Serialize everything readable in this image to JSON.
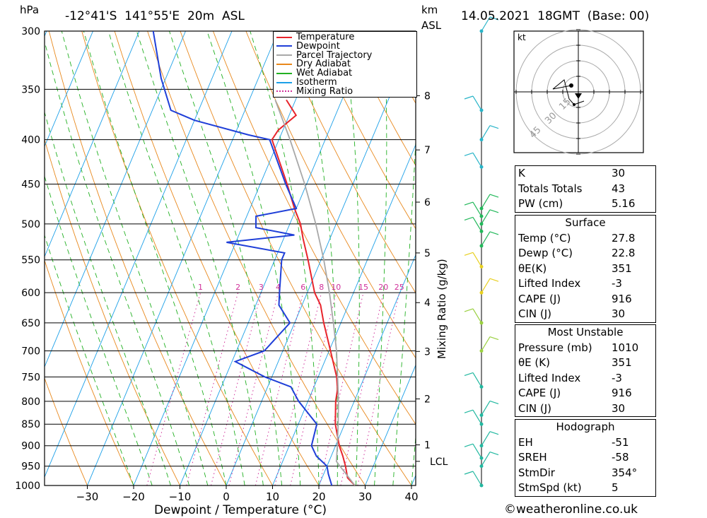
{
  "header": {
    "pressure_unit": "hPa",
    "location": "-12°41'S  141°55'E  20m  ASL",
    "km_unit": "km",
    "asl": "ASL",
    "datetime": "14.05.2021  18GMT  (Base: 00)"
  },
  "chart_data": {
    "type": "line",
    "title": "-12°41'S  141°55'E  20m  ASL",
    "xlabel": "Dewpoint / Temperature (°C)",
    "ylabel": "hPa",
    "xlim": [
      -40,
      40
    ],
    "ylim": [
      1000,
      300
    ],
    "x_ticks": [
      -30,
      -20,
      -10,
      0,
      10,
      20,
      30,
      40
    ],
    "pressure_ticks": [
      300,
      350,
      400,
      450,
      500,
      550,
      600,
      650,
      700,
      750,
      800,
      850,
      900,
      950,
      1000
    ],
    "km_ticks": [
      {
        "km": "1",
        "p": 898
      },
      {
        "km": "2",
        "p": 795
      },
      {
        "km": "3",
        "p": 701
      },
      {
        "km": "4",
        "p": 616
      },
      {
        "km": "5",
        "p": 540
      },
      {
        "km": "6",
        "p": 472
      },
      {
        "km": "7",
        "p": 411
      },
      {
        "km": "8",
        "p": 356
      }
    ],
    "lcl": {
      "label": "LCL",
      "p": 938
    },
    "mixing_ratio_label": "Mixing Ratio (g/kg)",
    "mixing_ratio_values": [
      "1",
      "2",
      "3",
      "4",
      "6",
      "8",
      "10",
      "15",
      "20",
      "25"
    ],
    "legend": [
      {
        "name": "Temperature",
        "color": "#e8242b",
        "style": "solid"
      },
      {
        "name": "Dewpoint",
        "color": "#1f3fd8",
        "style": "solid"
      },
      {
        "name": "Parcel Trajectory",
        "color": "#a8a8a8",
        "style": "solid"
      },
      {
        "name": "Dry Adiabat",
        "color": "#e8881c",
        "style": "solid"
      },
      {
        "name": "Wet Adiabat",
        "color": "#22b022",
        "style": "solid"
      },
      {
        "name": "Isotherm",
        "color": "#1ca0e8",
        "style": "solid"
      },
      {
        "name": "Mixing Ratio",
        "color": "#d0309a",
        "style": "dotted"
      }
    ],
    "series": [
      {
        "name": "Temperature",
        "color": "#e8242b",
        "points": [
          {
            "p": 1000,
            "t": 27.8
          },
          {
            "p": 980,
            "t": 25.5
          },
          {
            "p": 950,
            "t": 24.0
          },
          {
            "p": 925,
            "t": 22.5
          },
          {
            "p": 900,
            "t": 20.8
          },
          {
            "p": 850,
            "t": 18.0
          },
          {
            "p": 800,
            "t": 16.0
          },
          {
            "p": 775,
            "t": 15.3
          },
          {
            "p": 750,
            "t": 14.0
          },
          {
            "p": 700,
            "t": 10.3
          },
          {
            "p": 650,
            "t": 6.3
          },
          {
            "p": 620,
            "t": 4.0
          },
          {
            "p": 600,
            "t": 1.6
          },
          {
            "p": 550,
            "t": -2.8
          },
          {
            "p": 520,
            "t": -5.8
          },
          {
            "p": 500,
            "t": -7.7
          },
          {
            "p": 480,
            "t": -10.4
          },
          {
            "p": 450,
            "t": -14.2
          },
          {
            "p": 400,
            "t": -21.5
          },
          {
            "p": 390,
            "t": -21.0
          },
          {
            "p": 375,
            "t": -18.5
          },
          {
            "p": 360,
            "t": -22.0
          }
        ]
      },
      {
        "name": "Dewpoint",
        "color": "#1f3fd8",
        "points": [
          {
            "p": 1000,
            "t": 22.8
          },
          {
            "p": 970,
            "t": 21.0
          },
          {
            "p": 950,
            "t": 20.0
          },
          {
            "p": 925,
            "t": 16.8
          },
          {
            "p": 900,
            "t": 14.8
          },
          {
            "p": 850,
            "t": 14.0
          },
          {
            "p": 800,
            "t": 8.0
          },
          {
            "p": 770,
            "t": 5.0
          },
          {
            "p": 750,
            "t": -1.5
          },
          {
            "p": 720,
            "t": -9.3
          },
          {
            "p": 700,
            "t": -4.0
          },
          {
            "p": 650,
            "t": -1.0
          },
          {
            "p": 620,
            "t": -5.0
          },
          {
            "p": 600,
            "t": -6.0
          },
          {
            "p": 550,
            "t": -8.5
          },
          {
            "p": 540,
            "t": -8.5
          },
          {
            "p": 525,
            "t": -22.0
          },
          {
            "p": 515,
            "t": -8.0
          },
          {
            "p": 505,
            "t": -17.0
          },
          {
            "p": 490,
            "t": -18.0
          },
          {
            "p": 480,
            "t": -10.0
          },
          {
            "p": 450,
            "t": -14.5
          },
          {
            "p": 400,
            "t": -22.0
          },
          {
            "p": 395,
            "t": -27.0
          },
          {
            "p": 380,
            "t": -40.0
          },
          {
            "p": 370,
            "t": -46.0
          },
          {
            "p": 340,
            "t": -51.0
          },
          {
            "p": 300,
            "t": -57.0
          }
        ]
      },
      {
        "name": "Parcel Trajectory",
        "color": "#a8a8a8",
        "points": [
          {
            "p": 1000,
            "t": 27.8
          },
          {
            "p": 950,
            "t": 22.8
          },
          {
            "p": 938,
            "t": 21.6
          },
          {
            "p": 900,
            "t": 20.4
          },
          {
            "p": 850,
            "t": 18.6
          },
          {
            "p": 800,
            "t": 16.6
          },
          {
            "p": 750,
            "t": 14.2
          },
          {
            "p": 700,
            "t": 11.6
          },
          {
            "p": 650,
            "t": 8.4
          },
          {
            "p": 600,
            "t": 4.8
          },
          {
            "p": 550,
            "t": 0.6
          },
          {
            "p": 500,
            "t": -4.4
          },
          {
            "p": 450,
            "t": -10.4
          },
          {
            "p": 400,
            "t": -17.6
          },
          {
            "p": 360,
            "t": -24.4
          }
        ]
      }
    ],
    "hodograph": {
      "unit": "kt",
      "ring_labels": [
        "15",
        "30",
        "45"
      ]
    },
    "wind_barb_pressures": [
      300,
      370,
      400,
      430,
      480,
      490,
      500,
      510,
      530,
      560,
      600,
      650,
      700,
      770,
      830,
      850,
      900,
      930,
      950,
      1000
    ]
  },
  "indices": {
    "top": [
      {
        "label": "K",
        "value": "30"
      },
      {
        "label": "Totals Totals",
        "value": "43"
      },
      {
        "label": "PW (cm)",
        "value": "5.16"
      }
    ],
    "surface": {
      "title": "Surface",
      "rows": [
        {
          "label": "Temp (°C)",
          "value": "27.8"
        },
        {
          "label": "Dewp (°C)",
          "value": "22.8"
        },
        {
          "label": "θE(K)",
          "value": "351"
        },
        {
          "label": "Lifted Index",
          "value": "-3"
        },
        {
          "label": "CAPE (J)",
          "value": "916"
        },
        {
          "label": "CIN (J)",
          "value": "30"
        }
      ]
    },
    "most_unstable": {
      "title": "Most Unstable",
      "rows": [
        {
          "label": "Pressure (mb)",
          "value": "1010"
        },
        {
          "label": "θE (K)",
          "value": "351"
        },
        {
          "label": "Lifted Index",
          "value": "-3"
        },
        {
          "label": "CAPE (J)",
          "value": "916"
        },
        {
          "label": "CIN (J)",
          "value": "30"
        }
      ]
    },
    "hodograph": {
      "title": "Hodograph",
      "rows": [
        {
          "label": "EH",
          "value": "-51"
        },
        {
          "label": "SREH",
          "value": "-58"
        },
        {
          "label": "StmDir",
          "value": "354°"
        },
        {
          "label": "StmSpd (kt)",
          "value": "5"
        }
      ]
    }
  },
  "footer": {
    "copyright": "©weatheronline.co.uk"
  }
}
